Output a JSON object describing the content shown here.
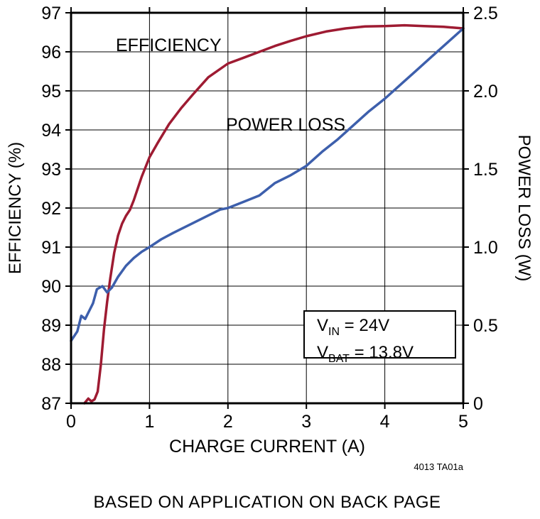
{
  "page": {
    "caption": "BASED ON APPLICATION ON BACK PAGE",
    "footnote": "4013 TA01a"
  },
  "chart_data": {
    "type": "line",
    "title": "",
    "xlabel": "CHARGE CURRENT (A)",
    "ylabel_left": "EFFICIENCY (%)",
    "ylabel_right": "POWER LOSS (W)",
    "xlim": [
      0,
      5
    ],
    "ylim_left": [
      87,
      97
    ],
    "ylim_right": [
      0,
      2.5
    ],
    "grid": true,
    "legend_position": "in-plot-text-labels",
    "xticks": [
      0,
      1,
      2,
      3,
      4,
      5
    ],
    "xtick_labels": [
      "0",
      "1",
      "2",
      "3",
      "4",
      "5"
    ],
    "yticks_left": [
      87,
      88,
      89,
      90,
      91,
      92,
      93,
      94,
      95,
      96,
      97
    ],
    "ytick_labels_left": [
      "87",
      "88",
      "89",
      "90",
      "91",
      "92",
      "93",
      "94",
      "95",
      "96",
      "97"
    ],
    "yticks_right": [
      0,
      0.5,
      1.0,
      1.5,
      2.0,
      2.5
    ],
    "ytick_labels_right": [
      "0",
      "0.5",
      "1.0",
      "1.5",
      "2.0",
      "2.5"
    ],
    "series": [
      {
        "name": "EFFICIENCY",
        "axis": "left",
        "unit": "%",
        "color": "#9e1b32",
        "x": [
          0.17,
          0.22,
          0.26,
          0.3,
          0.34,
          0.38,
          0.42,
          0.46,
          0.5,
          0.55,
          0.6,
          0.65,
          0.7,
          0.75,
          0.8,
          0.9,
          1.0,
          1.1,
          1.25,
          1.4,
          1.55,
          1.75,
          2.0,
          2.2,
          2.4,
          2.6,
          2.8,
          3.0,
          3.25,
          3.5,
          3.75,
          4.0,
          4.25,
          4.5,
          4.75,
          5.0
        ],
        "y": [
          87.0,
          87.12,
          87.05,
          87.1,
          87.3,
          88.0,
          88.9,
          89.6,
          90.2,
          90.85,
          91.3,
          91.6,
          91.8,
          91.95,
          92.2,
          92.8,
          93.3,
          93.65,
          94.15,
          94.55,
          94.9,
          95.35,
          95.7,
          95.85,
          96.0,
          96.15,
          96.28,
          96.4,
          96.52,
          96.6,
          96.65,
          96.66,
          96.68,
          96.66,
          96.64,
          96.6
        ]
      },
      {
        "name": "POWER LOSS",
        "axis": "right",
        "unit": "W",
        "color": "#3d5fac",
        "x": [
          0.0,
          0.08,
          0.13,
          0.18,
          0.22,
          0.28,
          0.33,
          0.4,
          0.46,
          0.52,
          0.6,
          0.7,
          0.8,
          0.9,
          1.0,
          1.15,
          1.3,
          1.5,
          1.7,
          1.9,
          2.0,
          2.2,
          2.4,
          2.6,
          2.8,
          3.0,
          3.2,
          3.4,
          3.6,
          3.8,
          4.0,
          4.2,
          4.4,
          4.6,
          4.8,
          5.0
        ],
        "y": [
          0.4,
          0.46,
          0.56,
          0.54,
          0.58,
          0.64,
          0.73,
          0.75,
          0.71,
          0.74,
          0.81,
          0.88,
          0.93,
          0.97,
          1.0,
          1.05,
          1.09,
          1.14,
          1.19,
          1.24,
          1.25,
          1.29,
          1.33,
          1.41,
          1.46,
          1.52,
          1.61,
          1.69,
          1.78,
          1.87,
          1.95,
          2.04,
          2.13,
          2.22,
          2.31,
          2.4
        ]
      }
    ],
    "annotation": {
      "line1": {
        "base": "V",
        "sub": "IN",
        "rest": " = 24V"
      },
      "line2": {
        "base": "V",
        "sub": "BAT",
        "rest": " = 13.8V"
      }
    }
  }
}
